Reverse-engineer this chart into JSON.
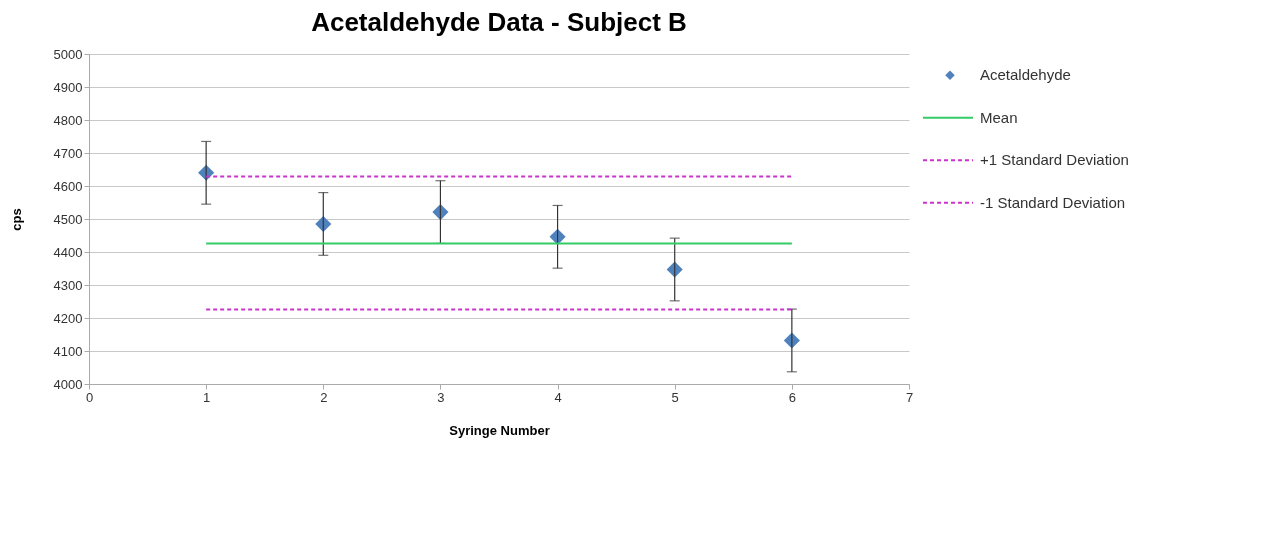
{
  "chart_data": {
    "type": "scatter",
    "title": "Acetaldehyde Data - Subject B",
    "xlabel": "Syringe Number",
    "ylabel": "cps",
    "xlim": [
      0,
      7
    ],
    "xticks": [
      0,
      1,
      2,
      3,
      4,
      5,
      6,
      7
    ],
    "ylim": [
      4000,
      5000
    ],
    "yticks": [
      4000,
      4100,
      4200,
      4300,
      4400,
      4500,
      4600,
      4700,
      4800,
      4900,
      5000
    ],
    "grid": "y",
    "legend": "right",
    "marker": "diamond",
    "series": [
      {
        "name": "Acetaldehyde",
        "color": "#4f81bd",
        "x": [
          1,
          2,
          3,
          4,
          5,
          6
        ],
        "values": [
          4640,
          4485,
          4521,
          4446,
          4347,
          4132
        ],
        "errors": [
          95,
          95,
          95,
          95,
          95,
          95
        ]
      },
      {
        "name": "Mean",
        "type": "line",
        "color": "#33cc66",
        "line_style": "solid",
        "marker": "none",
        "x": [
          1,
          6
        ],
        "values": [
          4426,
          4426
        ]
      },
      {
        "name": "+1 Standard Deviation",
        "type": "line",
        "color": "#cc33cc",
        "line_style": "dashed",
        "marker": "none",
        "x": [
          1,
          6
        ],
        "values": [
          4629,
          4629
        ]
      },
      {
        "name": "-1 Standard Deviation",
        "type": "line",
        "color": "#cc33cc",
        "line_style": "dashed",
        "marker": "none",
        "x": [
          1,
          6
        ],
        "values": [
          4226,
          4226
        ]
      }
    ]
  }
}
